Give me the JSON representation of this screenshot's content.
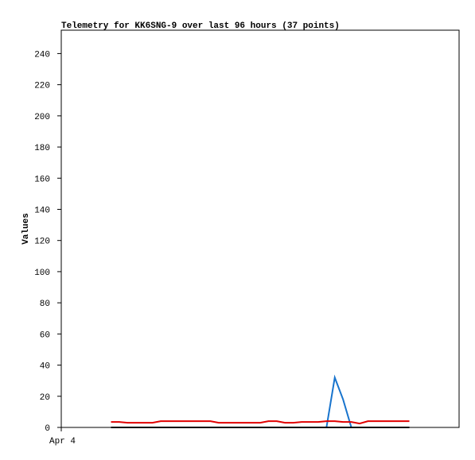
{
  "chart_data": {
    "type": "line",
    "title": "Telemetry for KK6SNG-9 over last 96 hours (37 points)",
    "y_label": "Values",
    "x": [
      12,
      14,
      16,
      18,
      20,
      22,
      24,
      26,
      28,
      30,
      32,
      34,
      36,
      38,
      40,
      42,
      44,
      46,
      48,
      50,
      52,
      54,
      56,
      58,
      60,
      62,
      64,
      66,
      68,
      70,
      72,
      74,
      76,
      78,
      80,
      82,
      84
    ],
    "xlim": [
      0,
      96
    ],
    "xticks": [
      {
        "value": 0,
        "label": "Apr 4"
      }
    ],
    "ylim": [
      0,
      255
    ],
    "yticks": [
      0,
      20,
      40,
      60,
      80,
      100,
      120,
      140,
      160,
      180,
      200,
      220,
      240
    ],
    "series": [
      {
        "color": "#1874cd",
        "values": [
          0,
          0,
          0,
          0,
          0,
          0,
          0,
          0,
          0,
          0,
          0,
          0,
          0,
          0,
          0,
          0,
          0,
          0,
          0,
          0,
          0,
          0,
          0,
          0,
          0,
          0,
          0,
          32,
          18,
          0,
          0,
          0,
          0,
          0,
          0,
          0,
          0
        ]
      },
      {
        "color": "#000000",
        "values": [
          0,
          0,
          0,
          0,
          0,
          0,
          0,
          0,
          0,
          0,
          0,
          0,
          0,
          0,
          0,
          0,
          0,
          0,
          0,
          0,
          0,
          0,
          0,
          0,
          0,
          0,
          0,
          0,
          0,
          0,
          0,
          0,
          0,
          0,
          0,
          0,
          0
        ]
      },
      {
        "color": "#e00000",
        "values": [
          3.5,
          3.5,
          3,
          3,
          3,
          3,
          4,
          4,
          4,
          4,
          4,
          4,
          4,
          3,
          3,
          3,
          3,
          3,
          3,
          4,
          4,
          3,
          3,
          3.5,
          3.5,
          3.5,
          4,
          4,
          3.5,
          3.5,
          2.5,
          4,
          4,
          4,
          4,
          4,
          4
        ]
      }
    ]
  }
}
